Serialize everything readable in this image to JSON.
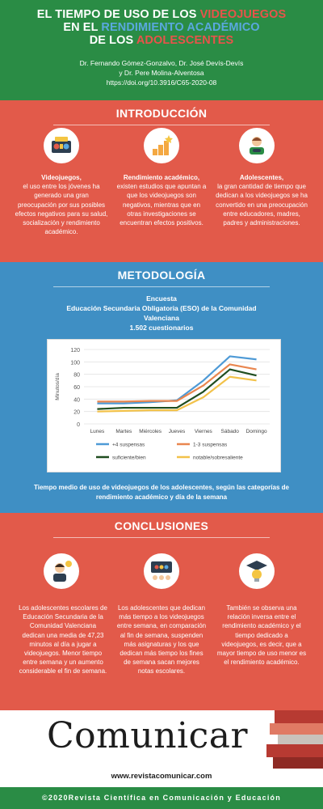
{
  "header": {
    "title_1_a": "EL TIEMPO DE USO DE LOS ",
    "title_1_b": "VIDEOJUEGOS",
    "title_2_a": "EN EL ",
    "title_2_b": "RENDIMIENTO ACADÉMICO",
    "title_3_a": "DE LOS ",
    "title_3_b": "ADOLESCENTES",
    "authors_1": "Dr. Fernando Gómez-Gonzalvo, Dr. José Devís-Devís",
    "authors_2": "y Dr. Pere Molina-Alventosa",
    "doi": "https://doi.org/10.3916/C65-2020-08"
  },
  "intro": {
    "title": "INTRODUCCIÓN",
    "cols": [
      {
        "heading": "Videojuegos,",
        "text": "el uso entre los jóvenes ha generado una gran preocupación por sus posibles efectos negativos para su salud, socialización y rendimiento académico.",
        "icon": "game-console-icon"
      },
      {
        "heading": "Rendimiento académico,",
        "text": "existen estudios que apuntan a que los videojuegos son negativos, mientras que en otras investigaciones se encuentran efectos positivos.",
        "icon": "growth-stairs-star-icon"
      },
      {
        "heading": "Adolescentes,",
        "text": "la gran cantidad de tiempo que dedican  a los videojuegos se ha convertido en una preocupación entre educadores, madres, padres y administraciones.",
        "icon": "teen-gamer-icon"
      }
    ]
  },
  "metodo": {
    "title": "METODOLOGÍA",
    "line_1": "Encuesta",
    "line_2": "Educación Secundaria Obligatoria (ESO) de la Comunidad",
    "line_3": "Valenciana",
    "line_4": "1.502 cuestionarios",
    "caption": "Tiempo medio de uso de videojuegos de los adolescentes, según las categorías de rendimiento académico y día de la semana"
  },
  "chart_data": {
    "type": "line",
    "categories": [
      "Lunes",
      "Martes",
      "Miércoles",
      "Jueves",
      "Viernes",
      "Sábado",
      "Domingo"
    ],
    "ylabel": "Minutos/día",
    "ylim": [
      0,
      120
    ],
    "yticks": [
      0,
      20,
      40,
      60,
      80,
      100,
      120
    ],
    "grid": true,
    "legend_position": "bottom",
    "series": [
      {
        "name": "+4 suspensas",
        "color": "#4e9ad6",
        "values": [
          33,
          33,
          35,
          38,
          70,
          109,
          104
        ]
      },
      {
        "name": "1-3 suspensas",
        "color": "#e9864f",
        "values": [
          36,
          36,
          37,
          37,
          62,
          96,
          88
        ]
      },
      {
        "name": "suficiente/bien",
        "color": "#1f4d1f",
        "values": [
          24,
          26,
          26,
          26,
          52,
          88,
          78
        ]
      },
      {
        "name": "notable/sobresaliente",
        "color": "#f2c24a",
        "values": [
          20,
          21,
          22,
          22,
          43,
          76,
          70
        ]
      }
    ]
  },
  "concl": {
    "title": "CONCLUSIONES",
    "cols": [
      {
        "text": "Los adolescentes escolares de Educación Secundaria de la Comunidad Valenciana dedican una media de 47,23 minutos al día a jugar a videojuegos. Menor tiempo entre semana y un aumento considerable el fin de semana.",
        "icon": "student-idea-icon"
      },
      {
        "text": "Los adolescentes que dedican más tiempo a los videojuegos entre semana, en comparación al fin de semana, suspenden más asignaturas y los que dedican más tiempo los fines de semana sacan mejores notas escolares.",
        "icon": "classroom-screen-icon"
      },
      {
        "text": "También se observa una relación inversa entre el rendimiento académico y el tiempo dedicado a videojuegos, es decir, que a mayor tiempo de uso menor es el rendimiento académico.",
        "icon": "graduation-bulb-icon"
      }
    ]
  },
  "logo": {
    "brand": "Comunicar",
    "url": "www.revistacomunicar.com"
  },
  "footer": {
    "text": "©2020Revista Científica en Comunicación y Educación"
  }
}
